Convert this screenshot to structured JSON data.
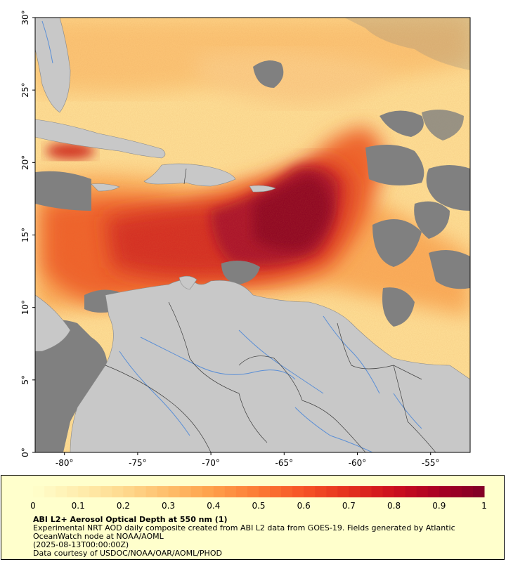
{
  "map": {
    "lat_ticks": [
      "0°",
      "5°",
      "10°",
      "15°",
      "20°",
      "25°",
      "30°"
    ],
    "lon_ticks": [
      "-80°",
      "-75°",
      "-70°",
      "-65°",
      "-60°",
      "-55°"
    ],
    "extent": {
      "lon_min": -82,
      "lon_max": -52.3,
      "lat_min": 0,
      "lat_max": 30
    },
    "colors": {
      "land": "#c8c8c8",
      "no_data": "#808080",
      "rivers": "#5b8fd6",
      "borders": "#404040",
      "ocean_low": "#ffe9a8",
      "plume_core": "#8b0024"
    }
  },
  "colorbar": {
    "ticks": [
      "0",
      "0.1",
      "0.2",
      "0.3",
      "0.4",
      "0.5",
      "0.6",
      "0.7",
      "0.8",
      "0.9",
      "1"
    ],
    "min": 0,
    "max": 1,
    "colors": [
      "#ffffcc",
      "#ffedae",
      "#fed98e",
      "#febe6a",
      "#fe9f49",
      "#fc7a35",
      "#f65326",
      "#e4301e",
      "#cc0f1d",
      "#a80024",
      "#800026"
    ]
  },
  "legend": {
    "title": "ABI L2+ Aerosol Optical Depth at 550 nm (1)",
    "line1": "Experimental NRT AOD daily composite created from ABI L2 data from GOES-19. Fields generated by Atlantic OceanWatch node at NOAA/AOML",
    "line2": "(2025-08-13T00:00:00Z)",
    "line3": "Data courtesy of USDOC/NOAA/OAR/AOML/PHOD"
  }
}
